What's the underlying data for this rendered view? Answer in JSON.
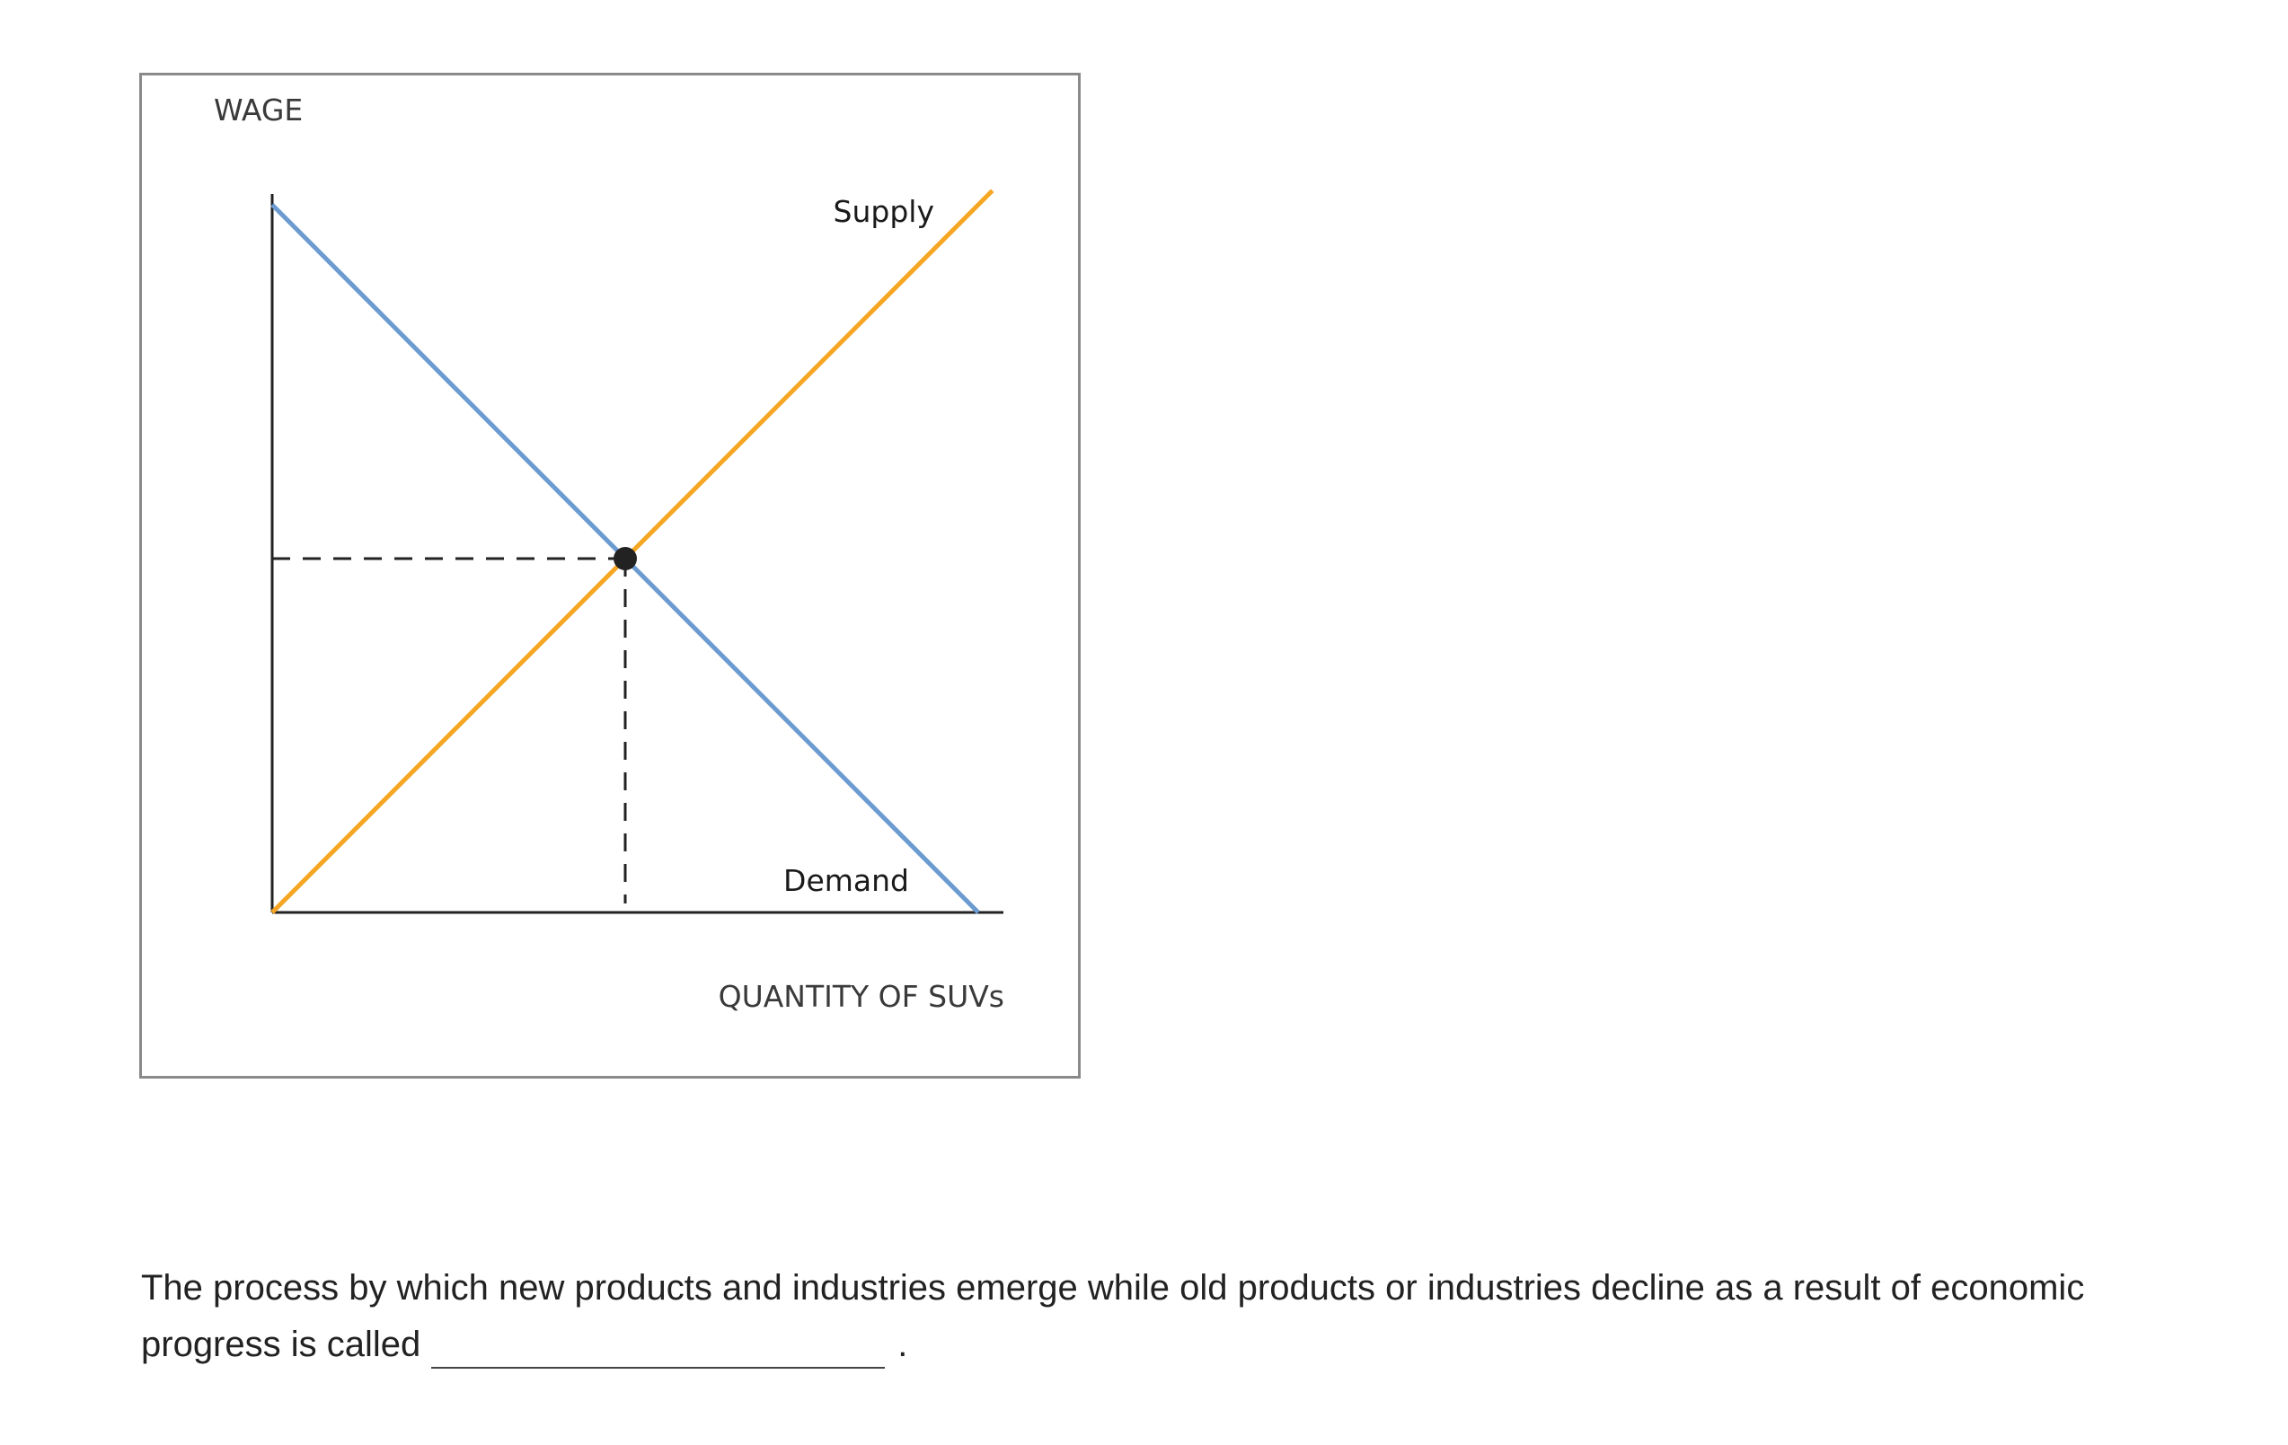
{
  "chart_data": {
    "type": "line",
    "ylabel": "WAGE",
    "xlabel": "QUANTITY OF SUVs",
    "xlim": [
      0,
      10
    ],
    "ylim": [
      0,
      10
    ],
    "series": [
      {
        "name": "Supply",
        "color": "#f5a623",
        "x": [
          0,
          10.2
        ],
        "y": [
          0,
          10.2
        ]
      },
      {
        "name": "Demand",
        "color": "#6b9bd1",
        "x": [
          0,
          10
        ],
        "y": [
          10,
          0
        ]
      }
    ],
    "equilibrium": {
      "x": 5,
      "y": 5
    }
  },
  "question": {
    "text": "The process by which new products and industries emerge while old products or industries decline as a result of economic progress is called",
    "end_punctuation": "."
  }
}
